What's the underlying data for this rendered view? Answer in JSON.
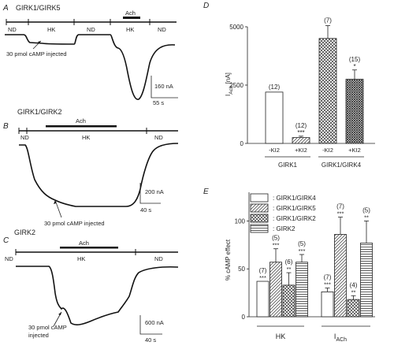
{
  "panels": {
    "A": {
      "letter": "A",
      "title": "GIRK1/GIRK5",
      "bar_label": "Ach",
      "segment_labels": [
        "ND",
        "HK",
        "ND",
        "HK",
        "ND"
      ],
      "annotation": "30 pmol cAMP injected",
      "scale_current": "160 nA",
      "scale_time": "55 s"
    },
    "B": {
      "letter": "B",
      "title": "GIRK1/GIRK2",
      "bar_label": "Ach",
      "segment_labels": [
        "ND",
        "HK",
        "ND"
      ],
      "annotation": "30 pmol cAMP injected",
      "scale_current": "200 nA",
      "scale_time": "40 s"
    },
    "C": {
      "letter": "C",
      "title": "GIRK2",
      "bar_label": "Ach",
      "segment_labels": [
        "ND",
        "HK",
        "ND"
      ],
      "annotation_line1": "30 pmol cAMP",
      "annotation_line2": "injected",
      "scale_current": "600 nA",
      "scale_time": "40 s"
    }
  },
  "chart_data": [
    {
      "panel": "D",
      "type": "bar",
      "ylabel_main": "I",
      "ylabel_sub": "Ach",
      "ylabel_unit": "[nA]",
      "ylim": [
        0,
        5000
      ],
      "yticks": [
        "0",
        "2500",
        "5000"
      ],
      "categories": [
        "-KI2",
        "+KI2",
        "-KI2",
        "+KI2"
      ],
      "groups": [
        "GIRK1",
        "GIRK1/GIRK4"
      ],
      "values": [
        2200,
        250,
        4500,
        2750
      ],
      "errors": [
        0,
        60,
        550,
        400
      ],
      "n_labels": [
        "(12)",
        "(12)",
        "(7)",
        "(15)"
      ],
      "significance": [
        "",
        "***",
        "",
        "*"
      ],
      "colors": {
        "open": "#ffffff",
        "hatch": "#555555"
      }
    },
    {
      "panel": "E",
      "type": "bar",
      "ylabel": "% cAMP effect",
      "ylim": [
        0,
        130
      ],
      "yticks": [
        "0",
        "50",
        "100"
      ],
      "groups": [
        "HK",
        "I_ACh"
      ],
      "group_label_hk": "HK",
      "group_label_iach_main": "I",
      "group_label_iach_sub": "ACh",
      "series": [
        {
          "name": ": GIRK1/GIRK4",
          "pattern": "open"
        },
        {
          "name": ": GIRK1/GIRK5",
          "pattern": "diagonal"
        },
        {
          "name": ": GIRK1/GIRK2",
          "pattern": "crosshatch"
        },
        {
          "name": ": GIRK2",
          "pattern": "horizontal"
        }
      ],
      "values_hk": [
        37,
        57,
        33,
        57
      ],
      "errors_hk": [
        0,
        14,
        13,
        8
      ],
      "n_hk": [
        "(7)",
        "(5)",
        "(6)",
        "(5)"
      ],
      "sig_hk": [
        "***",
        "***",
        "**",
        "***"
      ],
      "values_iach": [
        26,
        86,
        18,
        77
      ],
      "errors_iach": [
        4,
        18,
        4,
        23
      ],
      "n_iach": [
        "(7)",
        "(7)",
        "(4)",
        "(5)"
      ],
      "sig_iach": [
        "***",
        "***",
        "**",
        "**"
      ]
    }
  ]
}
